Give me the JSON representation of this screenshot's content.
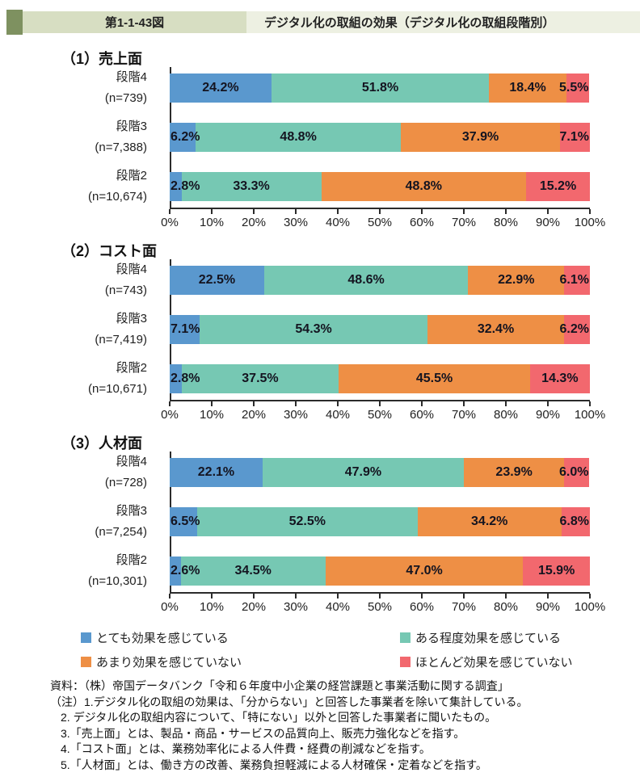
{
  "header": {
    "figure_no": "第1-1-43図",
    "title": "デジタル化の取組の効果（デジタル化の取組段階別）",
    "accent_color": "#7e9160",
    "figure_no_bg": "#d7dec2",
    "strip_bg": "#edf0e2"
  },
  "legend": [
    {
      "label": "とても効果を感じている",
      "color": "#5a98ce"
    },
    {
      "label": "ある程度効果を感じている",
      "color": "#76c8b3"
    },
    {
      "label": "あまり効果を感じていない",
      "color": "#ee8f45"
    },
    {
      "label": "ほとんど効果を感じていない",
      "color": "#f2686e"
    }
  ],
  "chart_data": [
    {
      "type": "bar",
      "orientation": "horizontal",
      "stacked": true,
      "title": "（1）売上面",
      "categories": [
        "段階4",
        "段階3",
        "段階2"
      ],
      "n_labels": [
        "(n=739)",
        "(n=7,388)",
        "(n=10,674)"
      ],
      "series": [
        {
          "name": "とても効果を感じている",
          "color": "#5a98ce",
          "values": [
            24.2,
            6.2,
            2.8
          ]
        },
        {
          "name": "ある程度効果を感じている",
          "color": "#76c8b3",
          "values": [
            51.8,
            48.8,
            33.3
          ]
        },
        {
          "name": "あまり効果を感じていない",
          "color": "#ee8f45",
          "values": [
            18.4,
            37.9,
            48.8
          ]
        },
        {
          "name": "ほとんど効果を感じていない",
          "color": "#f2686e",
          "values": [
            5.5,
            7.1,
            15.2
          ]
        }
      ],
      "xlim": [
        0,
        100
      ],
      "xticks": [
        "0%",
        "10%",
        "20%",
        "30%",
        "40%",
        "50%",
        "60%",
        "70%",
        "80%",
        "90%",
        "100%"
      ],
      "grid": false,
      "legend_position": "bottom"
    },
    {
      "type": "bar",
      "orientation": "horizontal",
      "stacked": true,
      "title": "（2）コスト面",
      "categories": [
        "段階4",
        "段階3",
        "段階2"
      ],
      "n_labels": [
        "(n=743)",
        "(n=7,419)",
        "(n=10,671)"
      ],
      "series": [
        {
          "name": "とても効果を感じている",
          "color": "#5a98ce",
          "values": [
            22.5,
            7.1,
            2.8
          ]
        },
        {
          "name": "ある程度効果を感じている",
          "color": "#76c8b3",
          "values": [
            48.6,
            54.3,
            37.5
          ]
        },
        {
          "name": "あまり効果を感じていない",
          "color": "#ee8f45",
          "values": [
            22.9,
            32.4,
            45.5
          ]
        },
        {
          "name": "ほとんど効果を感じていない",
          "color": "#f2686e",
          "values": [
            6.1,
            6.2,
            14.3
          ]
        }
      ],
      "xlim": [
        0,
        100
      ],
      "xticks": [
        "0%",
        "10%",
        "20%",
        "30%",
        "40%",
        "50%",
        "60%",
        "70%",
        "80%",
        "90%",
        "100%"
      ],
      "grid": false,
      "legend_position": "bottom"
    },
    {
      "type": "bar",
      "orientation": "horizontal",
      "stacked": true,
      "title": "（3）人材面",
      "categories": [
        "段階4",
        "段階3",
        "段階2"
      ],
      "n_labels": [
        "(n=728)",
        "(n=7,254)",
        "(n=10,301)"
      ],
      "series": [
        {
          "name": "とても効果を感じている",
          "color": "#5a98ce",
          "values": [
            22.1,
            6.5,
            2.6
          ]
        },
        {
          "name": "ある程度効果を感じている",
          "color": "#76c8b3",
          "values": [
            47.9,
            52.5,
            34.5
          ]
        },
        {
          "name": "あまり効果を感じていない",
          "color": "#ee8f45",
          "values": [
            23.9,
            34.2,
            47.0
          ]
        },
        {
          "name": "ほとんど効果を感じていない",
          "color": "#f2686e",
          "values": [
            6.0,
            6.8,
            15.9
          ]
        }
      ],
      "xlim": [
        0,
        100
      ],
      "xticks": [
        "0%",
        "10%",
        "20%",
        "30%",
        "40%",
        "50%",
        "60%",
        "70%",
        "80%",
        "90%",
        "100%"
      ],
      "grid": false,
      "legend_position": "bottom"
    }
  ],
  "notes": {
    "source": "資料：（株）帝国データバンク「令和６年度中小企業の経営課題と事業活動に関する調査」",
    "lines": [
      "（注）1.デジタル化の取組の効果は、「分からない」と回答した事業者を除いて集計している。",
      "2. デジタル化の取組内容について、「特にない」以外と回答した事業者に聞いたもの。",
      "3.「売上面」とは、製品・商品・サービスの品質向上、販売力強化などを指す。",
      "4.「コスト面」とは、業務効率化による人件費・経費の削減などを指す。",
      "5.「人材面」とは、働き方の改善、業務負担軽減による人材確保・定着などを指す。"
    ]
  }
}
